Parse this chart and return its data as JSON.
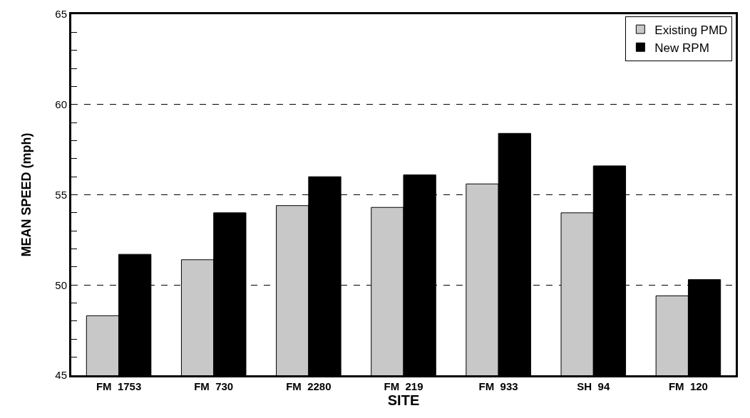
{
  "chart_data": {
    "type": "bar",
    "xlabel": "SITE",
    "ylabel": "MEAN SPEED (mph)",
    "categories": [
      "FM  1753",
      "FM  730",
      "FM  2280",
      "FM  219",
      "FM  933",
      "SH  94",
      "FM  120"
    ],
    "series": [
      {
        "name": "Existing PMD",
        "color": "#c8c8c8",
        "values": [
          48.3,
          51.4,
          54.4,
          54.3,
          55.6,
          54.0,
          49.4
        ]
      },
      {
        "name": "New RPM",
        "color": "#000000",
        "values": [
          51.7,
          54.0,
          56.0,
          56.1,
          58.4,
          56.6,
          50.3
        ]
      }
    ],
    "ylim": [
      45,
      65
    ],
    "yticks": [
      45,
      {
        "value": 46,
        "label": null
      },
      {
        "value": 47,
        "label": null
      },
      {
        "value": 48,
        "label": null
      },
      {
        "value": 49,
        "label": null
      },
      50,
      {
        "value": 51,
        "label": null
      },
      {
        "value": 52,
        "label": null
      },
      {
        "value": 53,
        "label": null
      },
      {
        "value": 54,
        "label": null
      },
      55,
      {
        "value": 56,
        "label": null
      },
      {
        "value": 57,
        "label": null
      },
      {
        "value": 58,
        "label": null
      },
      {
        "value": 59,
        "label": null
      },
      60,
      {
        "value": 61,
        "label": null
      },
      {
        "value": 62,
        "label": null
      },
      {
        "value": 63,
        "label": null
      },
      {
        "value": 64,
        "label": null
      },
      65
    ],
    "grid": "y",
    "line_style": "dashed",
    "legend": "top right"
  }
}
